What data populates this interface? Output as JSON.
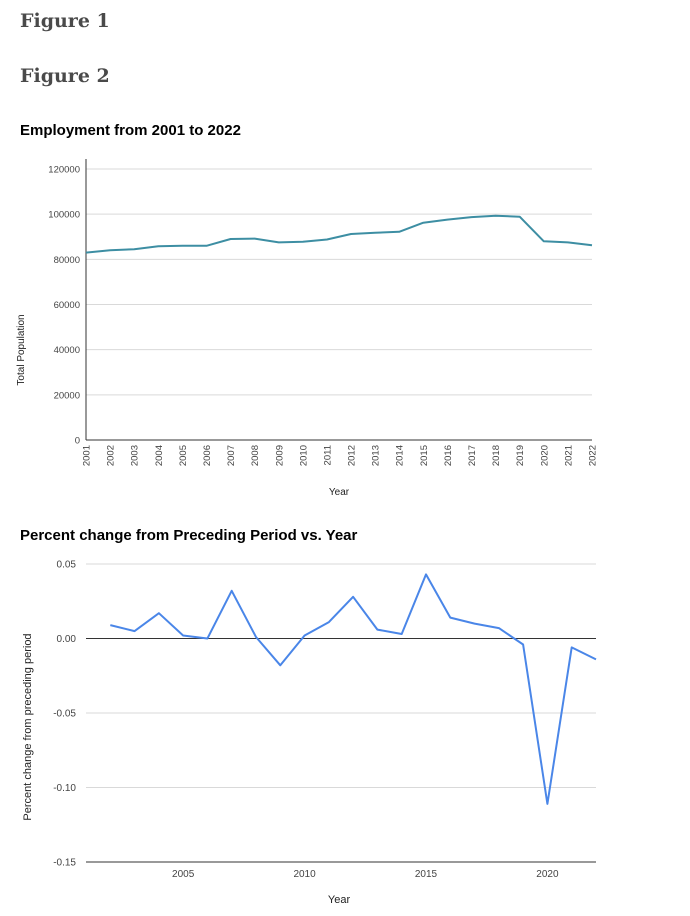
{
  "headings": {
    "figure1": "Figure 1",
    "figure2": "Figure 2"
  },
  "chart_data": [
    {
      "type": "line",
      "title": "Employment from 2001 to 2022",
      "xlabel": "Year",
      "ylabel": "Total Population",
      "ylim": [
        0,
        120000
      ],
      "yticks": [
        0,
        20000,
        40000,
        60000,
        80000,
        100000,
        120000
      ],
      "categories": [
        "2001",
        "2002",
        "2003",
        "2004",
        "2005",
        "2006",
        "2007",
        "2008",
        "2009",
        "2010",
        "2011",
        "2012",
        "2013",
        "2014",
        "2015",
        "2016",
        "2017",
        "2018",
        "2019",
        "2020",
        "2021",
        "2022"
      ],
      "series": [
        {
          "values": [
            83000,
            84000,
            84500,
            85800,
            86000,
            86000,
            89000,
            89200,
            87500,
            87800,
            88800,
            91200,
            91800,
            92200,
            96200,
            97600,
            98700,
            99300,
            98900,
            88000,
            87500,
            86200
          ]
        }
      ],
      "line_color": "#3d8ea3",
      "grid": true
    },
    {
      "type": "line",
      "title": "Percent change from Preceding Period vs. Year",
      "xlabel": "Year",
      "ylabel": "Percent change from preceding period",
      "ylim": [
        -0.15,
        0.05
      ],
      "yticks": [
        -0.15,
        -0.1,
        -0.05,
        0.0,
        0.05
      ],
      "ytick_labels": [
        "-0.15",
        "-0.10",
        "-0.05",
        "0.00",
        "0.05"
      ],
      "xlim": [
        2001,
        2022
      ],
      "xticks": [
        2005,
        2010,
        2015,
        2020
      ],
      "x": [
        2002,
        2003,
        2004,
        2005,
        2006,
        2007,
        2008,
        2009,
        2010,
        2011,
        2012,
        2013,
        2014,
        2015,
        2016,
        2017,
        2018,
        2019,
        2020,
        2021,
        2022
      ],
      "series": [
        {
          "values": [
            0.009,
            0.005,
            0.017,
            0.002,
            0.0,
            0.032,
            0.001,
            -0.018,
            0.002,
            0.011,
            0.028,
            0.006,
            0.003,
            0.043,
            0.014,
            0.01,
            0.007,
            -0.004,
            -0.111,
            -0.006,
            -0.014
          ]
        }
      ],
      "line_color": "#4a86e8",
      "grid": true
    }
  ]
}
